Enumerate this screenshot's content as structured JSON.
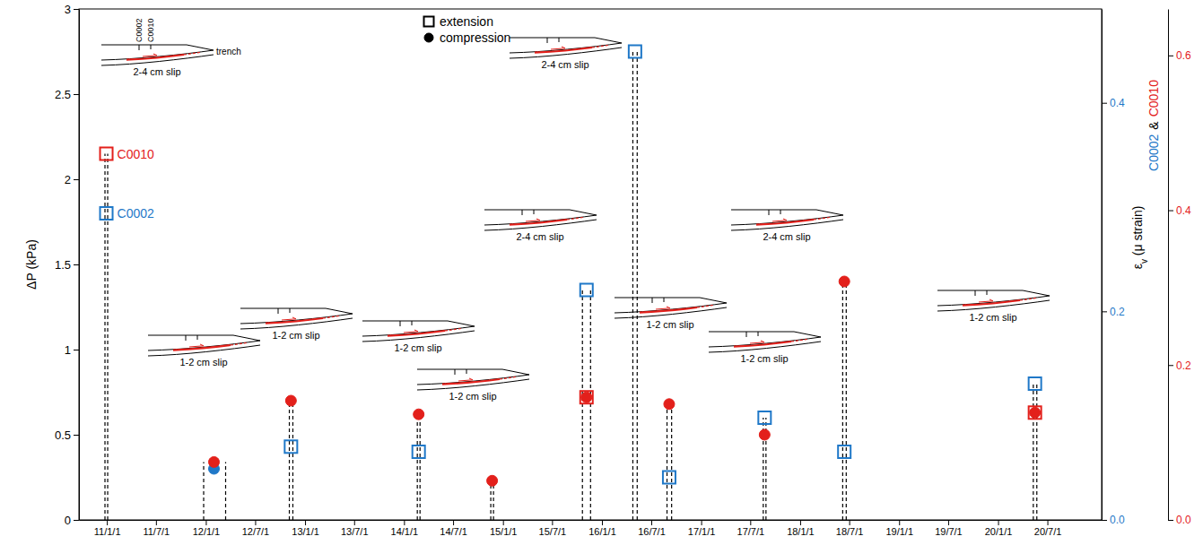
{
  "chart_data": {
    "type": "scatter",
    "y_label": "ΔP (kPa)",
    "y2_label": "εv (μ strain)",
    "y2_label_parts": [
      "C0002",
      "&",
      "C0010"
    ],
    "xlim": [
      "2010-09-20",
      "2021-01-17"
    ],
    "xticks": [
      {
        "value": "2011-01-01",
        "label": "11/1/1"
      },
      {
        "value": "2011-07-01",
        "label": "11/7/1"
      },
      {
        "value": "2012-01-01",
        "label": "12/1/1"
      },
      {
        "value": "2012-07-01",
        "label": "12/7/1"
      },
      {
        "value": "2013-01-01",
        "label": "13/1/1"
      },
      {
        "value": "2013-07-01",
        "label": "13/7/1"
      },
      {
        "value": "2014-01-01",
        "label": "14/1/1"
      },
      {
        "value": "2014-07-01",
        "label": "14/7/1"
      },
      {
        "value": "2015-01-01",
        "label": "15/1/1"
      },
      {
        "value": "2015-07-01",
        "label": "15/7/1"
      },
      {
        "value": "2016-01-01",
        "label": "16/1/1"
      },
      {
        "value": "2016-07-01",
        "label": "16/7/1"
      },
      {
        "value": "2017-01-01",
        "label": "17/1/1"
      },
      {
        "value": "2017-07-01",
        "label": "17/7/1"
      },
      {
        "value": "2018-01-01",
        "label": "18/1/1"
      },
      {
        "value": "2018-07-01",
        "label": "18/7/1"
      },
      {
        "value": "2019-01-01",
        "label": "19/1/1"
      },
      {
        "value": "2019-07-01",
        "label": "19/7/1"
      },
      {
        "value": "2020-01-01",
        "label": "20/1/1"
      },
      {
        "value": "2020-07-01",
        "label": "20/7/1"
      }
    ],
    "ylim": [
      0,
      3
    ],
    "yticks": [
      0,
      0.5,
      1,
      1.5,
      2,
      2.5,
      3
    ],
    "y2lim": [
      0,
      0.49
    ],
    "y2ticks": [
      {
        "value": 0,
        "label": "0.0"
      },
      0.2,
      0.4
    ],
    "y3lim": [
      0,
      0.66
    ],
    "y3ticks": [
      {
        "value": 0,
        "label": "0.0"
      },
      0.2,
      0.4,
      0.6
    ],
    "legend": "upper center",
    "marker_types": [
      {
        "name": "extension",
        "marker": "square"
      },
      {
        "name": "compression",
        "marker": "circle"
      }
    ],
    "series": [
      {
        "name": "C0002",
        "color": "#1f78c8",
        "x": [
          "2010-12-30",
          "2012-01-31",
          "2012-11-10",
          "2014-02-24",
          "2015-11-05",
          "2016-05-02",
          "2016-09-05",
          "2017-08-23",
          "2018-06-13",
          "2020-05-16"
        ],
        "values": [
          1.8,
          0.3,
          0.43,
          0.4,
          1.35,
          2.75,
          0.25,
          0.6,
          0.4,
          0.8
        ],
        "markers": [
          "extension",
          "compression",
          "extension",
          "extension",
          "extension",
          "extension",
          "extension",
          "extension",
          "extension",
          "extension"
        ]
      },
      {
        "name": "C0010",
        "color": "#e3201b",
        "x": [
          "2010-12-30",
          "2012-01-31",
          "2012-11-10",
          "2014-02-24",
          "2014-11-22",
          "2015-11-05",
          "2015-11-05",
          "2016-09-05",
          "2017-08-23",
          "2018-06-13",
          "2020-05-16",
          "2020-05-16"
        ],
        "values": [
          2.15,
          0.34,
          0.7,
          0.62,
          0.23,
          0.72,
          0.72,
          0.68,
          0.5,
          1.4,
          0.63,
          0.63
        ],
        "markers": [
          "extension",
          "compression",
          "compression",
          "compression",
          "compression",
          "extension",
          "compression",
          "compression",
          "compression",
          "compression",
          "extension",
          "compression"
        ]
      }
    ],
    "events": [
      {
        "start": "2010-12-25",
        "end": "2011-01-04",
        "slip": "2-4 cm slip"
      },
      {
        "start": "2011-12-24",
        "end": "2012-03-14",
        "slip": "1-2 cm slip"
      },
      {
        "start": "2012-11-04",
        "end": "2012-11-17",
        "slip": "1-2 cm slip"
      },
      {
        "start": "2014-02-19",
        "end": "2014-03-01",
        "slip": "1-2 cm slip"
      },
      {
        "start": "2014-11-17",
        "end": "2014-11-27",
        "slip": "1-2 cm slip"
      },
      {
        "start": "2015-10-21",
        "end": "2015-11-20",
        "slip": "2-4 cm slip"
      },
      {
        "start": "2016-04-24",
        "end": "2016-05-10",
        "slip": "2-4 cm slip"
      },
      {
        "start": "2016-08-28",
        "end": "2016-09-14",
        "slip": "1-2 cm slip"
      },
      {
        "start": "2017-08-18",
        "end": "2017-08-28",
        "slip": "1-2 cm slip"
      },
      {
        "start": "2018-06-07",
        "end": "2018-06-20",
        "slip": "2-4 cm slip"
      },
      {
        "start": "2020-05-10",
        "end": "2020-05-23",
        "slip": "1-2 cm slip"
      }
    ],
    "annotations": [
      "trench"
    ]
  }
}
